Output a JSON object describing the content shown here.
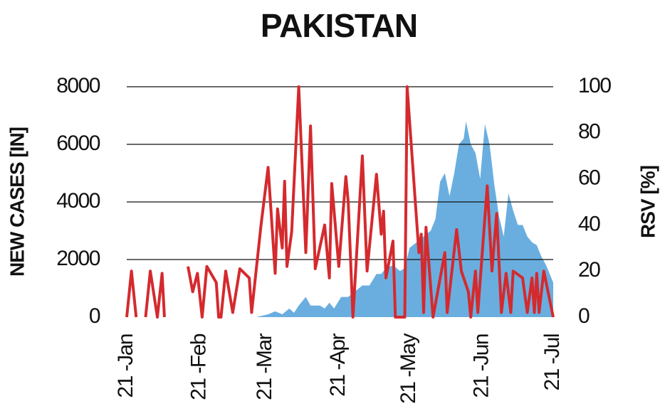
{
  "chart_data": {
    "type": "line",
    "title": "PAKISTAN",
    "ylabel": "NEW CASES [IN]",
    "y2label": "RSV [%]",
    "xlim": [
      0,
      181
    ],
    "xticks": [
      {
        "value": 0,
        "label": "21 -Jan"
      },
      {
        "value": 31,
        "label": "21 -Feb"
      },
      {
        "value": 59,
        "label": "21 -Mar"
      },
      {
        "value": 90,
        "label": "21 -Apr"
      },
      {
        "value": 120,
        "label": "21 -May"
      },
      {
        "value": 151,
        "label": "21 -Jun"
      },
      {
        "value": 181,
        "label": "21 -Jul"
      }
    ],
    "ylim": [
      0,
      8000
    ],
    "yticks": [
      0,
      2000,
      4000,
      6000,
      8000
    ],
    "y2lim": [
      0,
      100
    ],
    "y2ticks": [
      0,
      20,
      40,
      60,
      80,
      100
    ],
    "grid": true,
    "series": [
      {
        "type": "area",
        "color": "#6aaee0",
        "x": [
          55,
          60,
          63,
          66,
          69,
          71,
          73,
          76,
          78,
          82,
          84,
          86,
          88,
          91,
          94,
          97,
          100,
          103,
          106,
          108,
          110,
          113,
          116,
          118,
          120,
          123,
          126,
          129,
          131,
          133,
          135,
          137,
          139,
          141,
          143,
          144,
          146,
          148,
          150,
          152,
          154,
          156,
          158,
          160,
          162,
          164,
          166,
          168,
          170,
          172,
          174,
          176,
          178,
          181
        ],
        "values": [
          0,
          100,
          200,
          100,
          300,
          150,
          400,
          700,
          400,
          400,
          300,
          500,
          300,
          700,
          700,
          900,
          1100,
          1100,
          1500,
          1500,
          1700,
          1800,
          1600,
          1700,
          2400,
          2600,
          2800,
          3000,
          3400,
          4700,
          5000,
          4200,
          5000,
          6000,
          6200,
          6800,
          6000,
          5700,
          4800,
          6700,
          6000,
          4600,
          3500,
          2800,
          4300,
          3700,
          3200,
          3200,
          2800,
          2600,
          2500,
          2100,
          1800,
          1200
        ]
      },
      {
        "type": "line",
        "axis": "y2",
        "color": "#d42a2e",
        "x": [
          0,
          2,
          4,
          6,
          8,
          10,
          13,
          15,
          16,
          20,
          26,
          28,
          30,
          32,
          34,
          38,
          39,
          40,
          42,
          45,
          48,
          52,
          53,
          57,
          60,
          63,
          64,
          66,
          67,
          68,
          70,
          73,
          76,
          78,
          80,
          84,
          86,
          87,
          90,
          93,
          94,
          96,
          100,
          102,
          106,
          108,
          109,
          110,
          113,
          114,
          118,
          119,
          124,
          125,
          126,
          127,
          130,
          135,
          136,
          140,
          142,
          145,
          146,
          148,
          149,
          153,
          155,
          157,
          159,
          161,
          163,
          164,
          168,
          170,
          172,
          173,
          174,
          175,
          177,
          181
        ],
        "values": [
          0,
          20,
          0,
          null,
          0,
          20,
          0,
          19,
          0,
          null,
          22,
          11,
          19,
          0,
          22,
          15,
          0,
          0,
          20,
          2,
          21,
          17,
          2,
          40,
          65,
          19,
          47,
          30,
          59,
          22,
          37,
          100,
          28,
          83,
          21,
          40,
          17,
          58,
          22,
          61,
          50,
          0,
          70,
          20,
          62,
          36,
          46,
          17,
          33,
          0,
          0,
          100,
          28,
          36,
          2,
          39,
          0,
          28,
          2,
          38,
          20,
          11,
          0,
          20,
          2,
          57,
          20,
          45,
          2,
          19,
          2,
          20,
          17,
          2,
          17,
          2,
          19,
          2,
          20,
          0
        ]
      }
    ]
  }
}
